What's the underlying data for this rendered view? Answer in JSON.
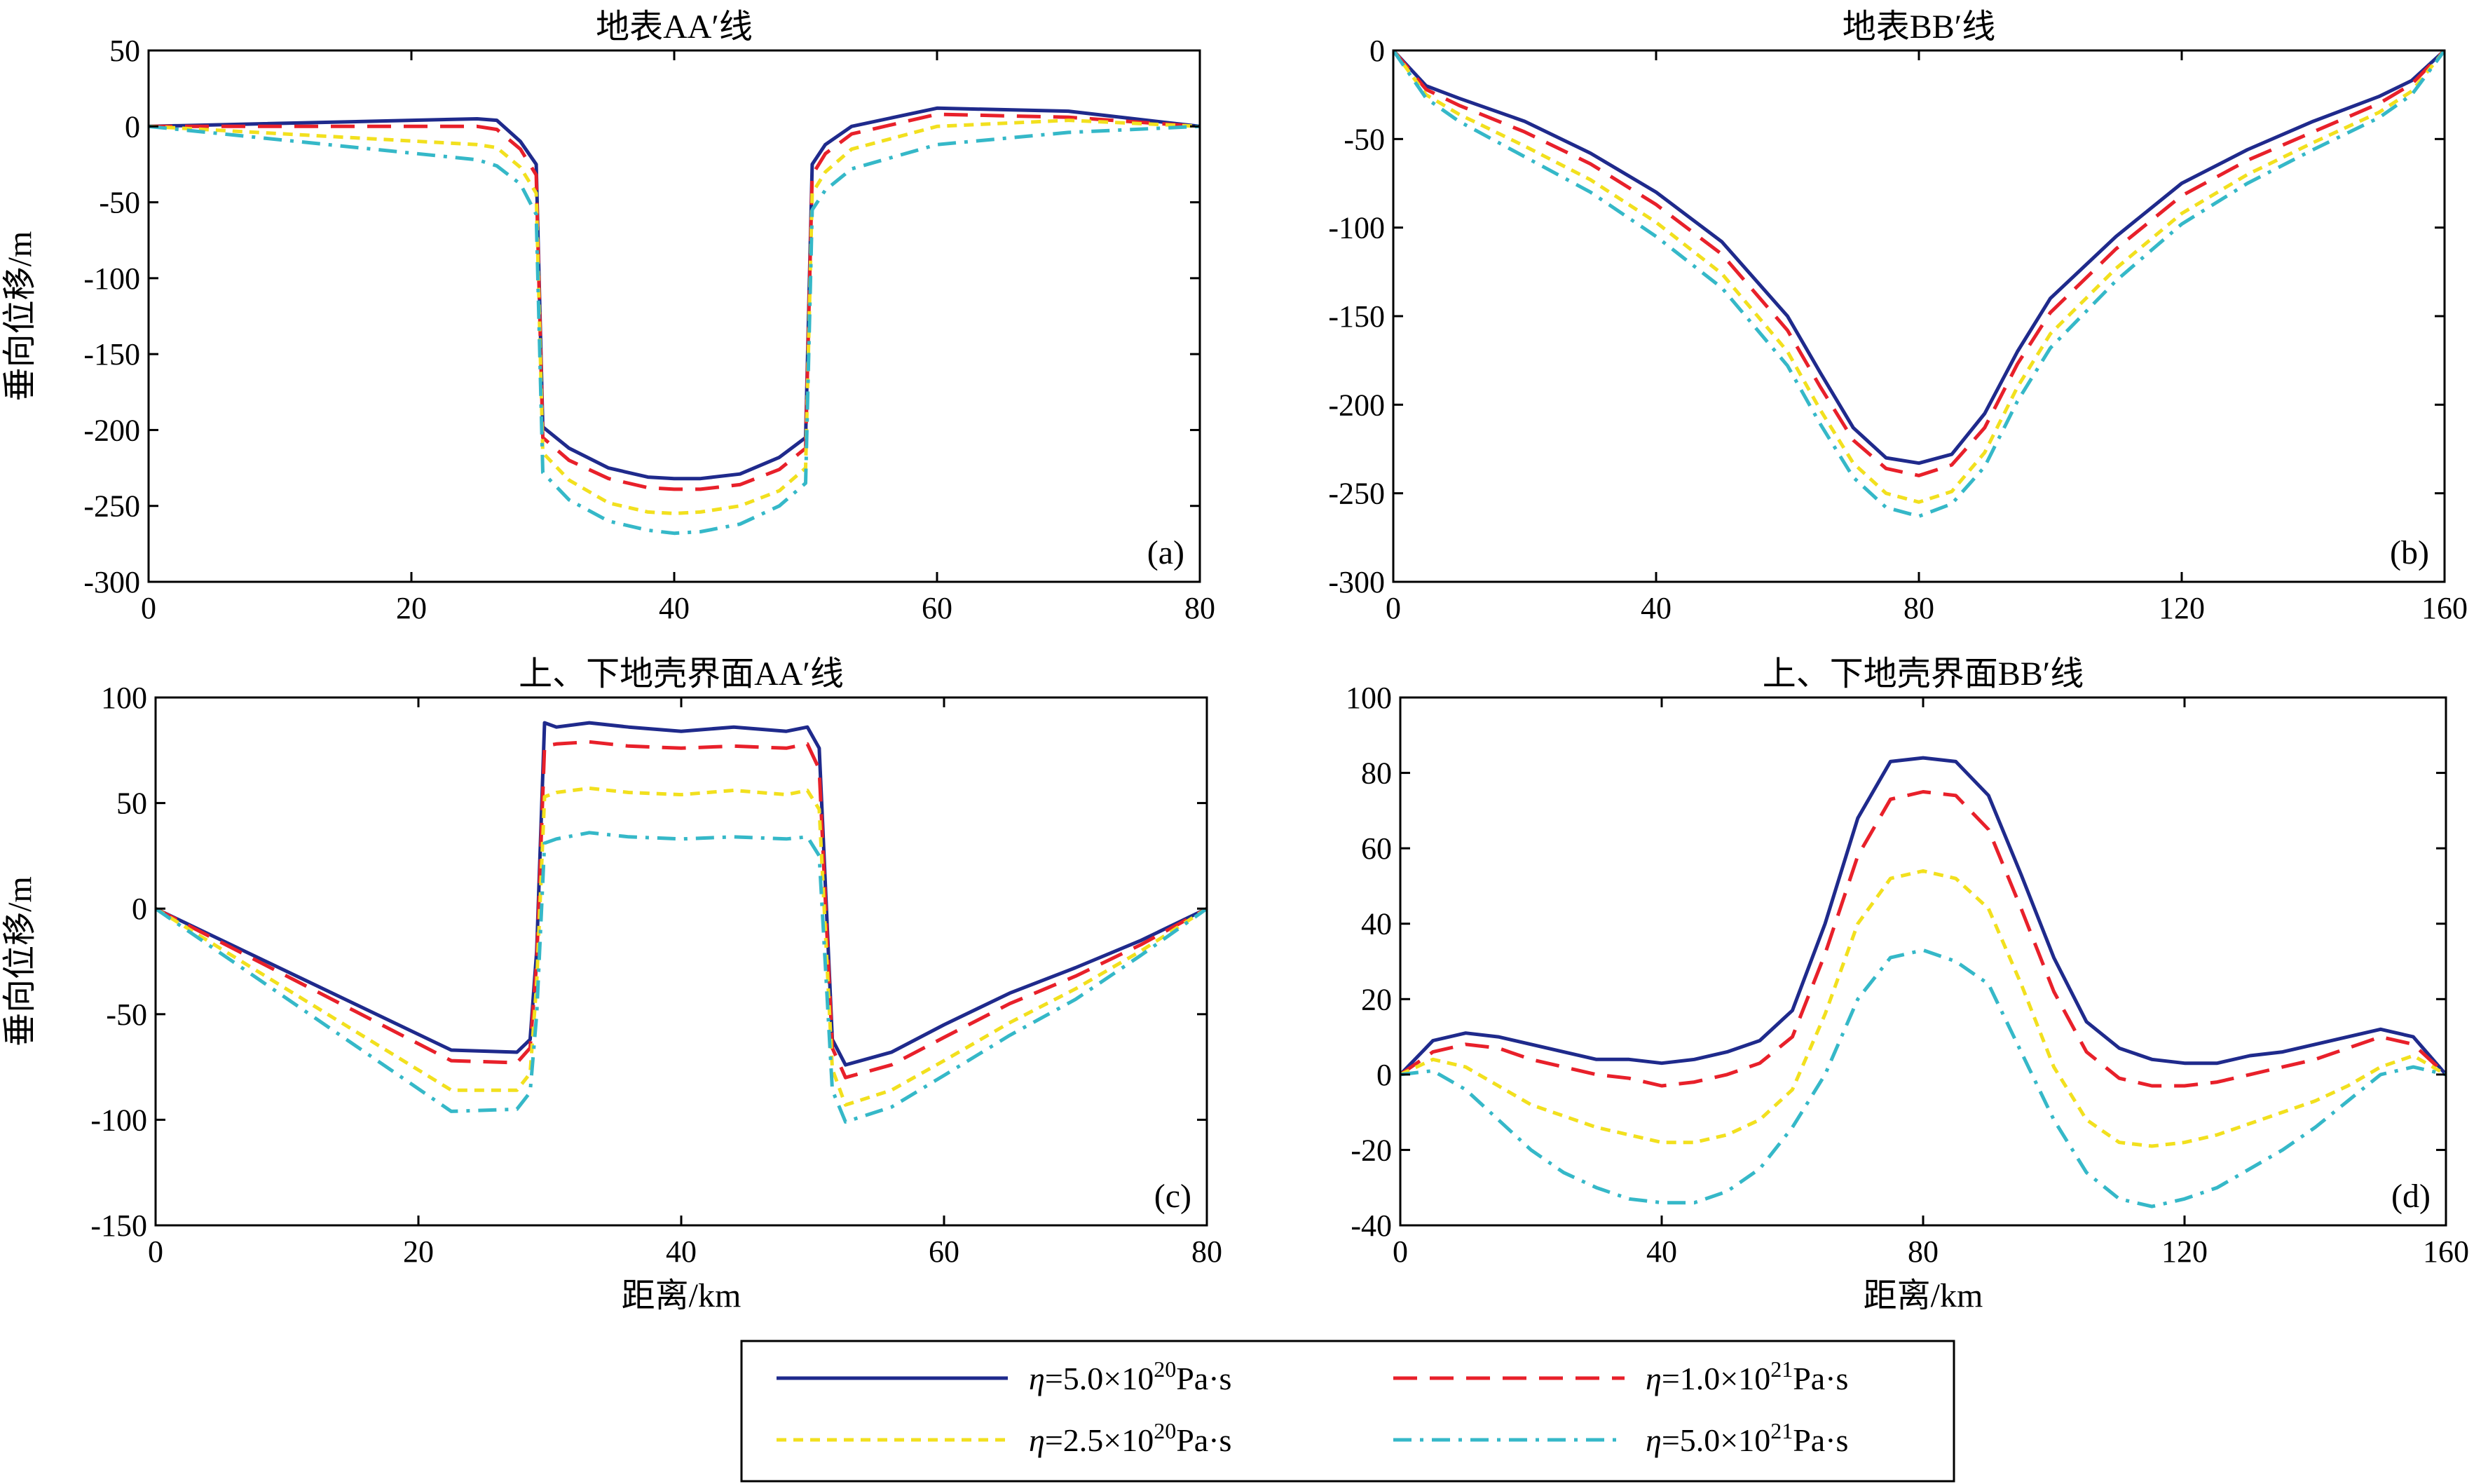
{
  "colors": {
    "eta_5e20": "#1f2a8c",
    "eta_1e21": "#e8202a",
    "eta_2_5e20": "#f2e01e",
    "eta_5e21": "#35b8c8",
    "axis": "#000000"
  },
  "legend": [
    {
      "eta": "η",
      "mant": "=5.0×10",
      "exp": "20",
      "unit": "Pa·s",
      "color": "#1f2a8c",
      "dash": "solid"
    },
    {
      "eta": "η",
      "mant": "=1.0×10",
      "exp": "21",
      "unit": "Pa·s",
      "color": "#e8202a",
      "dash": "dashed"
    },
    {
      "eta": "η",
      "mant": "=2.5×10",
      "exp": "20",
      "unit": "Pa·s",
      "color": "#f2e01e",
      "dash": "dotted"
    },
    {
      "eta": "η",
      "mant": "=5.0×10",
      "exp": "21",
      "unit": "Pa·s",
      "color": "#35b8c8",
      "dash": "dashdot"
    }
  ],
  "chart_data": [
    {
      "type": "line",
      "panel": "(a)",
      "title": "地表AA′线",
      "xlabel": "",
      "ylabel": "垂向位移/m",
      "xlim": [
        0,
        80
      ],
      "ylim": [
        -300,
        50
      ],
      "xticks": [
        0,
        20,
        40,
        60,
        80
      ],
      "yticks": [
        50,
        0,
        -50,
        -100,
        -150,
        -200,
        -250,
        -300
      ],
      "series": [
        {
          "color": "#1f2a8c",
          "dash": "solid",
          "x": [
            0,
            25,
            26.5,
            28.3,
            29.5,
            30,
            32,
            35,
            38,
            40,
            42,
            45,
            48,
            50,
            50.5,
            51.5,
            53.5,
            60,
            70,
            80
          ],
          "y": [
            0,
            5,
            4,
            -10,
            -25,
            -198,
            -212,
            -225,
            -231,
            -232,
            -232,
            -229,
            -218,
            -205,
            -25,
            -12,
            0,
            12,
            10,
            0
          ]
        },
        {
          "color": "#e8202a",
          "dash": "dashed",
          "x": [
            0,
            25,
            26.5,
            28.3,
            29.5,
            30,
            32,
            35,
            38,
            40,
            42,
            45,
            48,
            50,
            50.5,
            51.5,
            53.5,
            60,
            70,
            80
          ],
          "y": [
            0,
            0,
            -2,
            -15,
            -32,
            -205,
            -220,
            -232,
            -238,
            -239,
            -239,
            -236,
            -226,
            -212,
            -32,
            -18,
            -5,
            8,
            6,
            0
          ]
        },
        {
          "color": "#f2e01e",
          "dash": "dotted",
          "x": [
            0,
            25,
            26.5,
            28.3,
            29.5,
            30,
            32,
            35,
            38,
            40,
            42,
            45,
            48,
            50,
            50.5,
            51.5,
            53.5,
            60,
            70,
            80
          ],
          "y": [
            0,
            -12,
            -14,
            -27,
            -44,
            -215,
            -233,
            -248,
            -254,
            -255,
            -254,
            -250,
            -240,
            -225,
            -44,
            -30,
            -15,
            0,
            4,
            0
          ]
        },
        {
          "color": "#35b8c8",
          "dash": "dashdot",
          "x": [
            0,
            25,
            26.5,
            28.3,
            29.5,
            30,
            32,
            35,
            38,
            40,
            42,
            45,
            48,
            50,
            50.5,
            51.5,
            53.5,
            60,
            70,
            80
          ],
          "y": [
            0,
            -22,
            -26,
            -38,
            -58,
            -228,
            -246,
            -260,
            -266,
            -268,
            -267,
            -262,
            -250,
            -235,
            -55,
            -42,
            -28,
            -12,
            -4,
            0
          ]
        }
      ]
    },
    {
      "type": "line",
      "panel": "(b)",
      "title": "地表BB′线",
      "xlabel": "",
      "ylabel": "",
      "xlim": [
        0,
        160
      ],
      "ylim": [
        -300,
        0
      ],
      "xticks": [
        0,
        40,
        80,
        120,
        160
      ],
      "yticks": [
        0,
        -50,
        -100,
        -150,
        -200,
        -250,
        -300
      ],
      "series": [
        {
          "color": "#1f2a8c",
          "dash": "solid",
          "x": [
            0,
            5,
            10,
            20,
            30,
            40,
            50,
            60,
            65,
            70,
            75,
            80,
            85,
            90,
            95,
            100,
            110,
            120,
            130,
            140,
            150,
            155,
            160
          ],
          "y": [
            0,
            -20,
            -27,
            -40,
            -58,
            -80,
            -108,
            -150,
            -182,
            -213,
            -230,
            -233,
            -228,
            -205,
            -170,
            -140,
            -105,
            -75,
            -56,
            -40,
            -26,
            -17,
            0
          ]
        },
        {
          "color": "#e8202a",
          "dash": "dashed",
          "x": [
            0,
            5,
            10,
            20,
            30,
            40,
            50,
            60,
            65,
            70,
            75,
            80,
            85,
            90,
            95,
            100,
            110,
            120,
            130,
            140,
            150,
            155,
            160
          ],
          "y": [
            0,
            -22,
            -31,
            -46,
            -64,
            -87,
            -115,
            -158,
            -190,
            -220,
            -236,
            -240,
            -234,
            -213,
            -177,
            -148,
            -112,
            -82,
            -62,
            -46,
            -30,
            -19,
            0
          ]
        },
        {
          "color": "#f2e01e",
          "dash": "dotted",
          "x": [
            0,
            5,
            10,
            20,
            30,
            40,
            50,
            60,
            65,
            70,
            75,
            80,
            85,
            90,
            95,
            100,
            110,
            120,
            130,
            140,
            150,
            155,
            160
          ],
          "y": [
            0,
            -25,
            -36,
            -54,
            -73,
            -97,
            -126,
            -170,
            -203,
            -233,
            -250,
            -255,
            -249,
            -227,
            -190,
            -160,
            -123,
            -92,
            -70,
            -52,
            -35,
            -23,
            0
          ]
        },
        {
          "color": "#35b8c8",
          "dash": "dashdot",
          "x": [
            0,
            5,
            10,
            20,
            30,
            40,
            50,
            60,
            65,
            70,
            75,
            80,
            85,
            90,
            95,
            100,
            110,
            120,
            130,
            140,
            150,
            155,
            160
          ],
          "y": [
            0,
            -27,
            -40,
            -60,
            -80,
            -105,
            -134,
            -178,
            -211,
            -241,
            -258,
            -263,
            -256,
            -235,
            -198,
            -168,
            -130,
            -98,
            -75,
            -56,
            -38,
            -25,
            0
          ]
        }
      ]
    },
    {
      "type": "line",
      "panel": "(c)",
      "title": "上、下地壳界面AA′线",
      "xlabel": "距离/km",
      "ylabel": "垂向位移/m",
      "xlim": [
        0,
        80
      ],
      "ylim": [
        -150,
        100
      ],
      "xticks": [
        0,
        20,
        40,
        60,
        80
      ],
      "yticks": [
        100,
        50,
        0,
        -50,
        -100,
        -150
      ],
      "series": [
        {
          "color": "#1f2a8c",
          "dash": "solid",
          "x": [
            0,
            22.5,
            27.5,
            28.5,
            29,
            29.6,
            30.5,
            33,
            36,
            40,
            44,
            48,
            49.6,
            50.5,
            51.5,
            52.5,
            56,
            60,
            65,
            70,
            75,
            80
          ],
          "y": [
            0,
            -67,
            -68,
            -62,
            -20,
            88,
            86,
            88,
            86,
            84,
            86,
            84,
            86,
            76,
            -62,
            -74,
            -68,
            -55,
            -40,
            -28,
            -15,
            0
          ]
        },
        {
          "color": "#e8202a",
          "dash": "dashed",
          "x": [
            0,
            22.5,
            27.5,
            28.5,
            29,
            29.6,
            30.5,
            33,
            36,
            40,
            44,
            48,
            49.6,
            50.5,
            51.5,
            52.5,
            56,
            60,
            65,
            70,
            75,
            80
          ],
          "y": [
            0,
            -72,
            -73,
            -66,
            -25,
            77,
            78,
            79,
            77,
            76,
            77,
            76,
            78,
            66,
            -66,
            -80,
            -74,
            -61,
            -45,
            -32,
            -17,
            0
          ]
        },
        {
          "color": "#f2e01e",
          "dash": "dotted",
          "x": [
            0,
            22.5,
            27.5,
            28.5,
            29,
            29.6,
            30.5,
            33,
            36,
            40,
            44,
            48,
            49.6,
            50.5,
            51.5,
            52.5,
            56,
            60,
            65,
            70,
            75,
            80
          ],
          "y": [
            0,
            -86,
            -86,
            -78,
            -35,
            53,
            55,
            57,
            55,
            54,
            56,
            54,
            56,
            47,
            -76,
            -93,
            -86,
            -72,
            -54,
            -38,
            -20,
            0
          ]
        },
        {
          "color": "#35b8c8",
          "dash": "dashdot",
          "x": [
            0,
            22.5,
            27.5,
            28.5,
            29,
            29.6,
            30.5,
            33,
            36,
            40,
            44,
            48,
            49.6,
            50.5,
            51.5,
            52.5,
            56,
            60,
            65,
            70,
            75,
            80
          ],
          "y": [
            0,
            -96,
            -95,
            -87,
            -50,
            31,
            33,
            36,
            34,
            33,
            34,
            33,
            34,
            25,
            -86,
            -101,
            -94,
            -79,
            -60,
            -43,
            -22,
            0
          ]
        }
      ]
    },
    {
      "type": "line",
      "panel": "(d)",
      "title": "上、下地壳界面BB′线",
      "xlabel": "距离/km",
      "ylabel": "",
      "xlim": [
        0,
        160
      ],
      "ylim": [
        -40,
        100
      ],
      "xticks": [
        0,
        40,
        80,
        120,
        160
      ],
      "yticks": [
        100,
        80,
        60,
        40,
        20,
        0,
        -20,
        -40
      ],
      "series": [
        {
          "color": "#1f2a8c",
          "dash": "solid",
          "x": [
            0,
            5,
            10,
            15,
            20,
            25,
            30,
            35,
            40,
            45,
            50,
            55,
            60,
            65,
            70,
            75,
            80,
            85,
            90,
            95,
            100,
            105,
            110,
            115,
            120,
            125,
            130,
            135,
            140,
            145,
            150,
            155,
            160
          ],
          "y": [
            0,
            9,
            11,
            10,
            8,
            6,
            4,
            4,
            3,
            4,
            6,
            9,
            17,
            40,
            68,
            83,
            84,
            83,
            74,
            53,
            31,
            14,
            7,
            4,
            3,
            3,
            5,
            6,
            8,
            10,
            12,
            10,
            0
          ]
        },
        {
          "color": "#e8202a",
          "dash": "dashed",
          "x": [
            0,
            5,
            10,
            15,
            20,
            25,
            30,
            35,
            40,
            45,
            50,
            55,
            60,
            65,
            70,
            75,
            80,
            85,
            90,
            95,
            100,
            105,
            110,
            115,
            120,
            125,
            130,
            135,
            140,
            145,
            150,
            155,
            160
          ],
          "y": [
            0,
            6,
            8,
            7,
            4,
            2,
            0,
            -1,
            -3,
            -2,
            0,
            3,
            10,
            32,
            58,
            73,
            75,
            74,
            65,
            44,
            22,
            6,
            -1,
            -3,
            -3,
            -2,
            0,
            2,
            4,
            7,
            10,
            8,
            0
          ]
        },
        {
          "color": "#f2e01e",
          "dash": "dotted",
          "x": [
            0,
            5,
            10,
            15,
            20,
            25,
            30,
            35,
            40,
            45,
            50,
            55,
            60,
            65,
            70,
            75,
            80,
            85,
            90,
            95,
            100,
            105,
            110,
            115,
            120,
            125,
            130,
            135,
            140,
            145,
            150,
            155,
            160
          ],
          "y": [
            0,
            4,
            2,
            -3,
            -8,
            -11,
            -14,
            -16,
            -18,
            -18,
            -16,
            -12,
            -4,
            16,
            40,
            52,
            54,
            52,
            44,
            24,
            2,
            -12,
            -18,
            -19,
            -18,
            -16,
            -13,
            -10,
            -7,
            -3,
            2,
            5,
            0
          ]
        },
        {
          "color": "#35b8c8",
          "dash": "dashdot",
          "x": [
            0,
            5,
            10,
            15,
            20,
            25,
            30,
            35,
            40,
            45,
            50,
            55,
            60,
            65,
            70,
            75,
            80,
            85,
            90,
            95,
            100,
            105,
            110,
            115,
            120,
            125,
            130,
            135,
            140,
            145,
            150,
            155,
            160
          ],
          "y": [
            0,
            1,
            -4,
            -12,
            -20,
            -26,
            -30,
            -33,
            -34,
            -34,
            -31,
            -25,
            -14,
            0,
            20,
            31,
            33,
            30,
            24,
            6,
            -12,
            -26,
            -33,
            -35,
            -33,
            -30,
            -25,
            -20,
            -14,
            -7,
            0,
            2,
            0
          ]
        }
      ]
    }
  ]
}
